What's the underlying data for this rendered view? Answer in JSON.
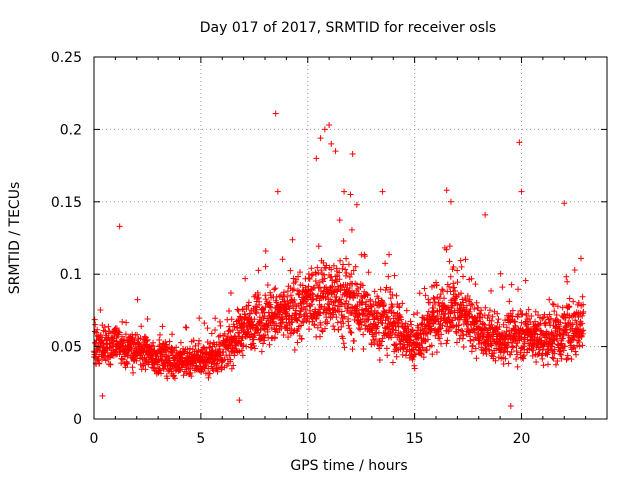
{
  "chart_data": {
    "type": "scatter",
    "title": "Day 017 of 2017, SRMTID for receiver osls",
    "xlabel": "GPS time / hours",
    "ylabel": "SRMTID / TECUs",
    "xlim": [
      0,
      24
    ],
    "ylim": [
      0,
      0.25
    ],
    "xticks": [
      0,
      5,
      10,
      15,
      20
    ],
    "yticks": [
      0,
      0.05,
      0.1,
      0.15,
      0.2,
      0.25
    ],
    "xtick_labels": [
      "0",
      "5",
      "10",
      "15",
      "20"
    ],
    "ytick_labels": [
      "0",
      "0.05",
      "0.1",
      "0.15",
      "0.2",
      "0.25"
    ],
    "grid": true,
    "legend": false,
    "marker": "+",
    "color": "#ff0000",
    "x_sample_step_hours": 0.0083,
    "x_end_hours": 22.9,
    "profile": [
      {
        "x": 0,
        "center": 0.048,
        "spread": 0.022
      },
      {
        "x": 1,
        "center": 0.052,
        "spread": 0.024
      },
      {
        "x": 2,
        "center": 0.047,
        "spread": 0.022
      },
      {
        "x": 3,
        "center": 0.042,
        "spread": 0.02
      },
      {
        "x": 4,
        "center": 0.04,
        "spread": 0.02
      },
      {
        "x": 5,
        "center": 0.041,
        "spread": 0.019
      },
      {
        "x": 6,
        "center": 0.045,
        "spread": 0.022
      },
      {
        "x": 7,
        "center": 0.063,
        "spread": 0.03
      },
      {
        "x": 8,
        "center": 0.07,
        "spread": 0.035
      },
      {
        "x": 9,
        "center": 0.072,
        "spread": 0.035
      },
      {
        "x": 10,
        "center": 0.078,
        "spread": 0.04
      },
      {
        "x": 11,
        "center": 0.085,
        "spread": 0.048
      },
      {
        "x": 12,
        "center": 0.08,
        "spread": 0.045
      },
      {
        "x": 13,
        "center": 0.07,
        "spread": 0.038
      },
      {
        "x": 14,
        "center": 0.065,
        "spread": 0.035
      },
      {
        "x": 15,
        "center": 0.05,
        "spread": 0.025
      },
      {
        "x": 16,
        "center": 0.072,
        "spread": 0.04
      },
      {
        "x": 17,
        "center": 0.075,
        "spread": 0.04
      },
      {
        "x": 18,
        "center": 0.06,
        "spread": 0.03
      },
      {
        "x": 19,
        "center": 0.055,
        "spread": 0.028
      },
      {
        "x": 20,
        "center": 0.06,
        "spread": 0.032
      },
      {
        "x": 21,
        "center": 0.055,
        "spread": 0.03
      },
      {
        "x": 22,
        "center": 0.06,
        "spread": 0.034
      },
      {
        "x": 23,
        "center": 0.065,
        "spread": 0.035
      }
    ],
    "outliers": [
      {
        "x": 1.2,
        "y": 0.133
      },
      {
        "x": 8.5,
        "y": 0.211
      },
      {
        "x": 8.6,
        "y": 0.157
      },
      {
        "x": 10.4,
        "y": 0.18
      },
      {
        "x": 10.6,
        "y": 0.194
      },
      {
        "x": 10.8,
        "y": 0.2
      },
      {
        "x": 11.0,
        "y": 0.203
      },
      {
        "x": 11.1,
        "y": 0.19
      },
      {
        "x": 11.3,
        "y": 0.185
      },
      {
        "x": 11.7,
        "y": 0.157
      },
      {
        "x": 12.1,
        "y": 0.183
      },
      {
        "x": 12.0,
        "y": 0.155
      },
      {
        "x": 12.3,
        "y": 0.148
      },
      {
        "x": 13.5,
        "y": 0.157
      },
      {
        "x": 16.5,
        "y": 0.158
      },
      {
        "x": 16.7,
        "y": 0.15
      },
      {
        "x": 18.3,
        "y": 0.141
      },
      {
        "x": 19.9,
        "y": 0.191
      },
      {
        "x": 20.0,
        "y": 0.157
      },
      {
        "x": 22.0,
        "y": 0.149
      },
      {
        "x": 19.5,
        "y": 0.009
      },
      {
        "x": 6.8,
        "y": 0.013
      },
      {
        "x": 0.4,
        "y": 0.016
      }
    ]
  }
}
